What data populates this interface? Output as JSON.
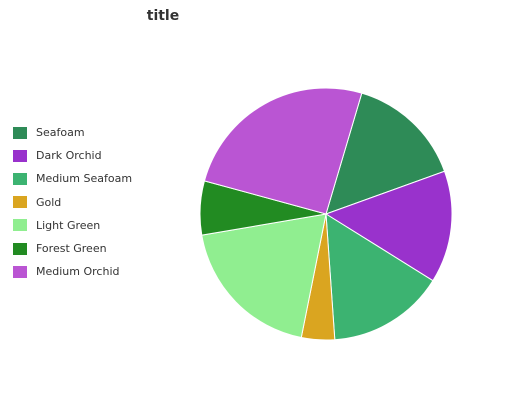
{
  "chart_data": {
    "type": "pie",
    "title": "title",
    "legend_position": "left",
    "categories": [
      "Seafoam",
      "Dark Orchid",
      "Medium Seafoam",
      "Gold",
      "Light Green",
      "Forest Green",
      "Medium Orchid"
    ],
    "values": [
      14,
      13.5,
      14.1,
      4,
      18,
      6.5,
      23.8
    ],
    "colors": [
      "#2e8b57",
      "#9932cc",
      "#3cb371",
      "#daa520",
      "#90ee90",
      "#228b22",
      "#ba55d3"
    ]
  }
}
